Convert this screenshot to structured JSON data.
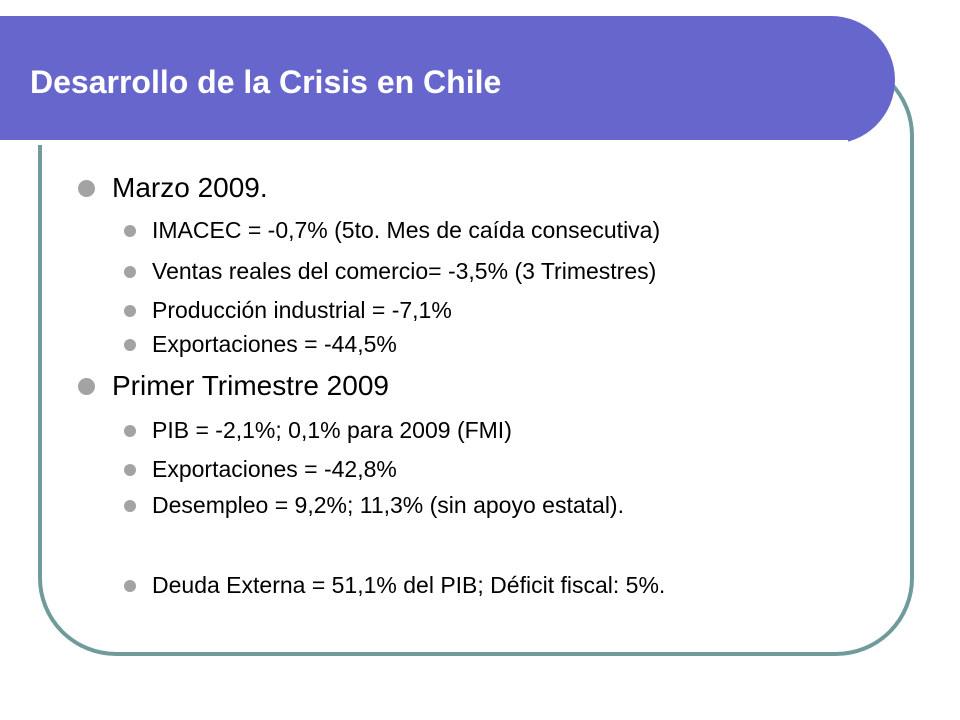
{
  "colors": {
    "title_bar": "#6666cc",
    "frame_border": "#6f9c9b",
    "bullet": "#a3a3a3"
  },
  "slide": {
    "title": "Desarrollo de la Crisis en Chile",
    "sections": [
      {
        "heading": "Marzo 2009.",
        "items": [
          "IMACEC = -0,7% (5to. Mes de caída consecutiva)",
          "Ventas reales del comercio= -3,5% (3 Trimestres)",
          "Producción industrial = -7,1%",
          "Exportaciones = -44,5%"
        ]
      },
      {
        "heading": "Primer Trimestre 2009",
        "items": [
          "PIB = -2,1%; 0,1% para 2009 (FMI)",
          "Exportaciones = -42,8%",
          "Desempleo = 9,2%; 11,3% (sin apoyo estatal).",
          "Deuda Externa = 51,1% del PIB; Déficit fiscal: 5%."
        ]
      }
    ]
  }
}
